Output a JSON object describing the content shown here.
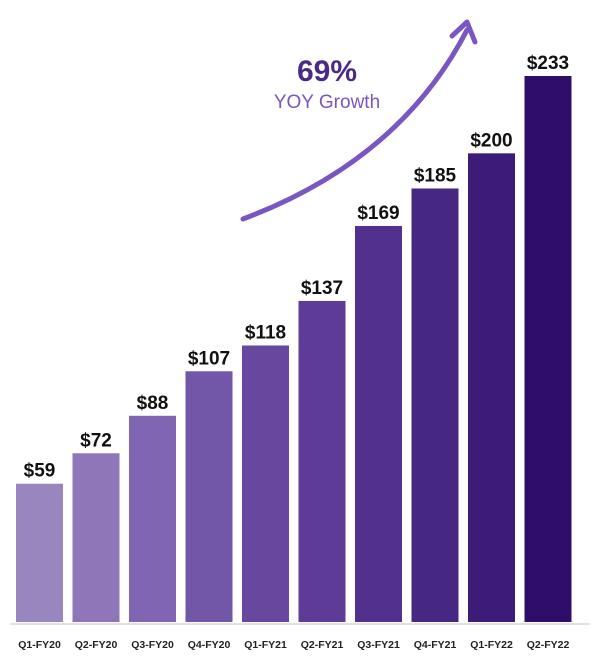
{
  "chart_data": {
    "type": "bar",
    "title": "",
    "xlabel": "",
    "ylabel": "",
    "categories": [
      "Q1-FY20",
      "Q2-FY20",
      "Q3-FY20",
      "Q4-FY20",
      "Q1-FY21",
      "Q2-FY21",
      "Q3-FY21",
      "Q4-FY21",
      "Q1-FY22",
      "Q2-FY22"
    ],
    "values": [
      59,
      72,
      88,
      107,
      118,
      137,
      169,
      185,
      200,
      233
    ],
    "value_labels": [
      "$59",
      "$72",
      "$88",
      "$107",
      "$118",
      "$137",
      "$169",
      "$185",
      "$200",
      "$233"
    ],
    "ylim": [
      0,
      233
    ],
    "grid": false,
    "legend": "none",
    "bar_colors": [
      "#9a86bf",
      "#8e76b9",
      "#8065b2",
      "#7256a8",
      "#68479f",
      "#5f3b98",
      "#51318d",
      "#462882",
      "#3c1c78",
      "#2f0e6a"
    ],
    "annotation": {
      "value": "69%",
      "label": "YOY Growth",
      "value_color": "#4a2a84",
      "label_color": "#7a56c0",
      "arrow_color": "#7a56c0"
    }
  }
}
